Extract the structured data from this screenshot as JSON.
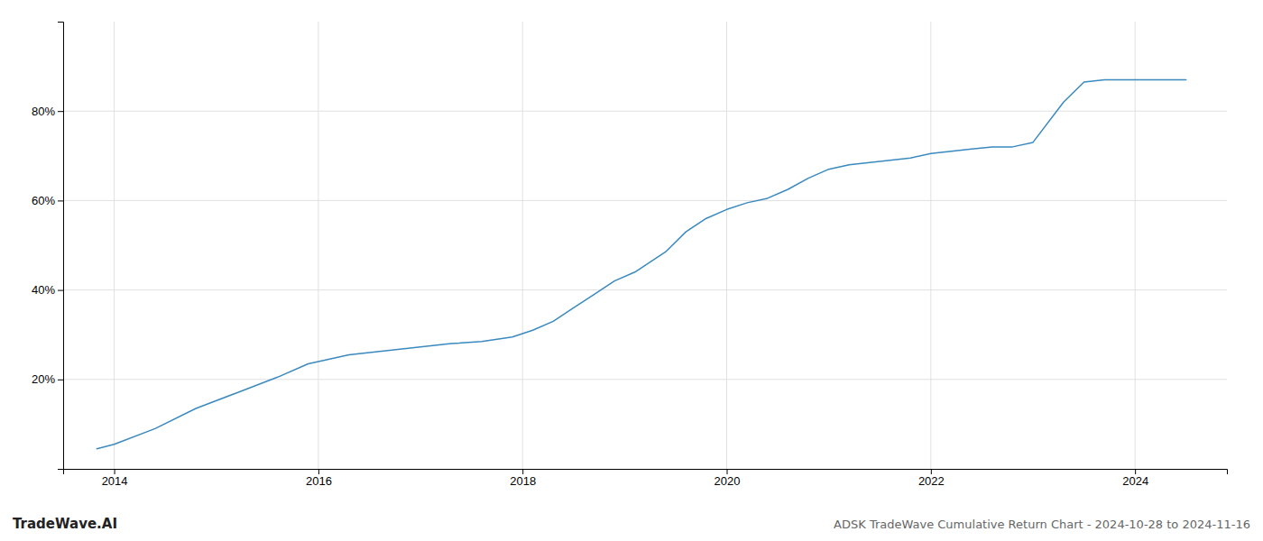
{
  "chart_data": {
    "type": "line",
    "title": "ADSK TradeWave Cumulative Return Chart - 2024-10-28 to 2024-11-16",
    "annotations": [
      "TradeWave.AI"
    ],
    "color": "#3a8abf",
    "x": [
      2013.83,
      2014.0,
      2014.4,
      2014.8,
      2015.2,
      2015.6,
      2015.9,
      2016.1,
      2016.3,
      2016.5,
      2016.7,
      2016.9,
      2017.1,
      2017.3,
      2017.6,
      2017.9,
      2018.1,
      2018.3,
      2018.5,
      2018.7,
      2018.9,
      2019.1,
      2019.4,
      2019.6,
      2019.8,
      2020.0,
      2020.2,
      2020.4,
      2020.6,
      2020.8,
      2021.0,
      2021.2,
      2021.4,
      2021.6,
      2021.8,
      2022.0,
      2022.2,
      2022.4,
      2022.6,
      2022.8,
      2023.0,
      2023.3,
      2023.5,
      2023.7,
      2023.9,
      2024.0,
      2024.3,
      2024.5
    ],
    "values": [
      4.5,
      5.5,
      9.0,
      13.5,
      17.0,
      20.5,
      23.5,
      24.5,
      25.5,
      26.0,
      26.5,
      27.0,
      27.5,
      28.0,
      28.5,
      29.5,
      31.0,
      33.0,
      36.0,
      39.0,
      42.0,
      44.0,
      48.5,
      53.0,
      56.0,
      58.0,
      59.5,
      60.5,
      62.5,
      65.0,
      67.0,
      68.0,
      68.5,
      69.0,
      69.5,
      70.5,
      71.0,
      71.5,
      72.0,
      72.0,
      73.0,
      82.0,
      86.5,
      87.0,
      87.0,
      87.0,
      87.0,
      87.0
    ],
    "xlim": [
      2013.5,
      2024.9
    ],
    "ylim": [
      0,
      100
    ],
    "xticks": [
      2014,
      2016,
      2018,
      2020,
      2022,
      2024
    ],
    "yticks": [
      {
        "value": 20,
        "label": "20%"
      },
      {
        "value": 40,
        "label": "40%"
      },
      {
        "value": 60,
        "label": "60%"
      },
      {
        "value": 80,
        "label": "80%"
      }
    ],
    "grid": true
  }
}
